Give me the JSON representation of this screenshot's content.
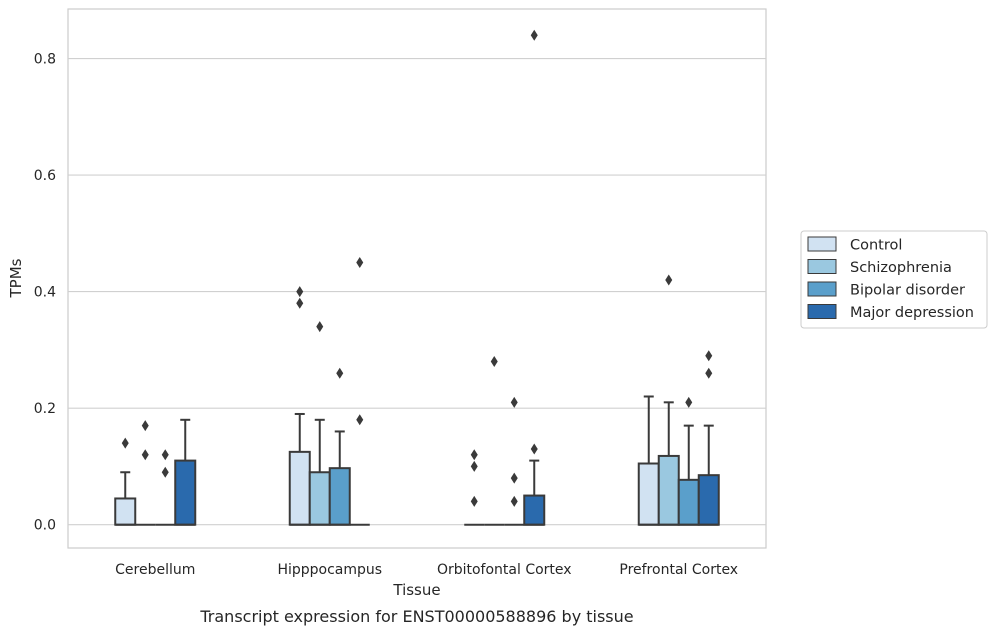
{
  "caption": "Transcript expression for ENST00000588896 by tissue",
  "chart_data": {
    "type": "box",
    "title": "",
    "xlabel": "Tissue",
    "ylabel": "TPMs",
    "ylim": [
      -0.04,
      0.885
    ],
    "yticks": [
      0.0,
      0.2,
      0.4,
      0.6,
      0.8
    ],
    "ytick_labels": [
      "0.0",
      "0.2",
      "0.4",
      "0.6",
      "0.8"
    ],
    "grid": "horizontal",
    "legend_position": "right",
    "categories": [
      "Cerebellum",
      "Hipppocampus",
      "Orbitofontal Cortex",
      "Prefrontal Cortex"
    ],
    "series": [
      {
        "name": "Control",
        "color": "#d1e2f2",
        "boxes": [
          {
            "q1": 0.0,
            "median": 0.0,
            "q3": 0.045,
            "whisker_low": 0.0,
            "whisker_high": 0.09,
            "outliers": [
              0.14
            ]
          },
          {
            "q1": 0.0,
            "median": 0.0,
            "q3": 0.125,
            "whisker_low": 0.0,
            "whisker_high": 0.19,
            "outliers": [
              0.38,
              0.4
            ]
          },
          {
            "q1": 0.0,
            "median": 0.0,
            "q3": 0.0,
            "whisker_low": 0.0,
            "whisker_high": 0.0,
            "outliers": [
              0.04,
              0.1,
              0.12
            ]
          },
          {
            "q1": 0.0,
            "median": 0.0,
            "q3": 0.105,
            "whisker_low": 0.0,
            "whisker_high": 0.22,
            "outliers": []
          }
        ]
      },
      {
        "name": "Schizophrenia",
        "color": "#9ac8e0",
        "boxes": [
          {
            "q1": 0.0,
            "median": 0.0,
            "q3": 0.0,
            "whisker_low": 0.0,
            "whisker_high": 0.0,
            "outliers": [
              0.12,
              0.17
            ]
          },
          {
            "q1": 0.0,
            "median": 0.0,
            "q3": 0.09,
            "whisker_low": 0.0,
            "whisker_high": 0.18,
            "outliers": [
              0.34
            ]
          },
          {
            "q1": 0.0,
            "median": 0.0,
            "q3": 0.0,
            "whisker_low": 0.0,
            "whisker_high": 0.0,
            "outliers": [
              0.28
            ]
          },
          {
            "q1": 0.0,
            "median": 0.0,
            "q3": 0.118,
            "whisker_low": 0.0,
            "whisker_high": 0.21,
            "outliers": [
              0.42
            ]
          }
        ]
      },
      {
        "name": "Bipolar disorder",
        "color": "#5a9fcb",
        "boxes": [
          {
            "q1": 0.0,
            "median": 0.0,
            "q3": 0.0,
            "whisker_low": 0.0,
            "whisker_high": 0.0,
            "outliers": [
              0.09,
              0.12
            ]
          },
          {
            "q1": 0.0,
            "median": 0.0,
            "q3": 0.097,
            "whisker_low": 0.0,
            "whisker_high": 0.16,
            "outliers": [
              0.26
            ]
          },
          {
            "q1": 0.0,
            "median": 0.0,
            "q3": 0.0,
            "whisker_low": 0.0,
            "whisker_high": 0.0,
            "outliers": [
              0.04,
              0.08,
              0.21
            ]
          },
          {
            "q1": 0.0,
            "median": 0.0,
            "q3": 0.077,
            "whisker_low": 0.0,
            "whisker_high": 0.17,
            "outliers": [
              0.21
            ]
          }
        ]
      },
      {
        "name": "Major depression",
        "color": "#2a6aad",
        "boxes": [
          {
            "q1": 0.0,
            "median": 0.0,
            "q3": 0.11,
            "whisker_low": 0.0,
            "whisker_high": 0.18,
            "outliers": []
          },
          {
            "q1": 0.0,
            "median": 0.0,
            "q3": 0.0,
            "whisker_low": 0.0,
            "whisker_high": 0.0,
            "outliers": [
              0.18,
              0.45
            ]
          },
          {
            "q1": 0.0,
            "median": 0.0,
            "q3": 0.05,
            "whisker_low": 0.0,
            "whisker_high": 0.11,
            "outliers": [
              0.13,
              0.84
            ]
          },
          {
            "q1": 0.0,
            "median": 0.0,
            "q3": 0.085,
            "whisker_low": 0.0,
            "whisker_high": 0.17,
            "outliers": [
              0.26,
              0.29
            ]
          }
        ]
      }
    ]
  }
}
